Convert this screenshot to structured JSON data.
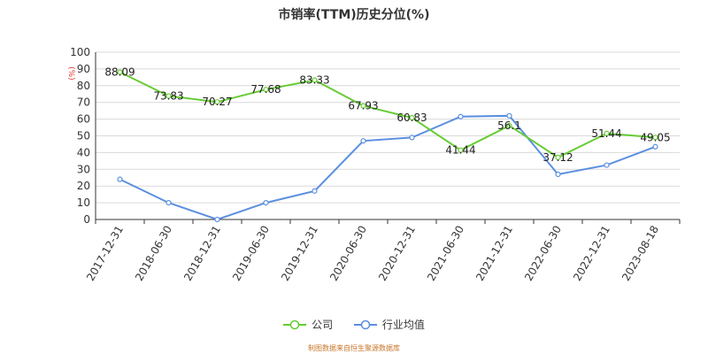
{
  "chart_data": {
    "type": "line",
    "title": "市销率(TTM)历史分位(%)",
    "ylabel": "(%)",
    "ylim": [
      0,
      100
    ],
    "yticks": [
      0,
      10,
      20,
      30,
      40,
      50,
      60,
      70,
      80,
      90,
      100
    ],
    "categories": [
      "2017-12-31",
      "2018-06-30",
      "2018-12-31",
      "2019-06-30",
      "2019-12-31",
      "2020-06-30",
      "2020-12-31",
      "2021-06-30",
      "2021-12-31",
      "2022-06-30",
      "2022-12-31",
      "2023-08-18"
    ],
    "grid": true,
    "legend_position": "bottom",
    "series": [
      {
        "name": "公司",
        "color": "#66cc33",
        "values": [
          88.09,
          73.83,
          70.27,
          77.68,
          83.33,
          67.93,
          60.83,
          41.44,
          56.1,
          37.12,
          51.44,
          49.05
        ],
        "labels": [
          "88.09",
          "73.83",
          "70.27",
          "77.68",
          "83.33",
          "67.93",
          "60.83",
          "41.44",
          "56.1",
          "37.12",
          "51.44",
          "49.05"
        ]
      },
      {
        "name": "行业均值",
        "color": "#5b8fe0",
        "values": [
          24,
          10,
          0,
          10,
          17,
          47,
          49,
          61.5,
          62,
          27,
          32.5,
          43.5
        ]
      }
    ],
    "source": "制图数据来自恒生聚源数据库"
  }
}
